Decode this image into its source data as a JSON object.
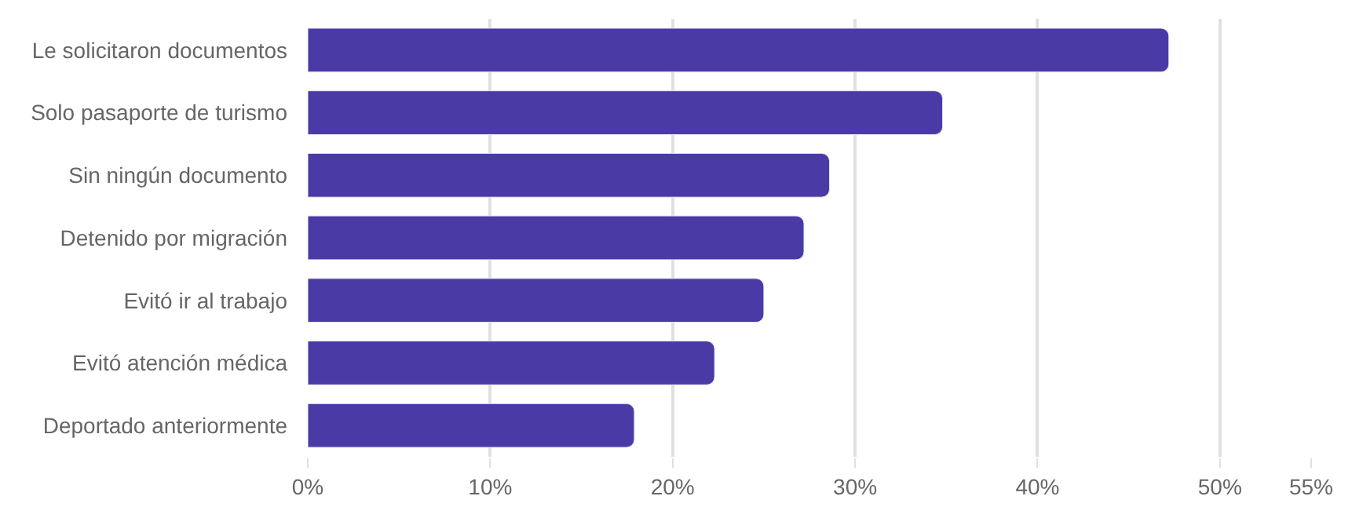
{
  "chart_data": {
    "type": "bar",
    "orientation": "horizontal",
    "categories": [
      "Le solicitaron documentos",
      "Solo pasaporte de turismo",
      "Sin ningún documento",
      "Detenido por migración",
      "Evitó ir al trabajo",
      "Evitó atención médica",
      "Deportado anteriormente"
    ],
    "values": [
      47.2,
      34.8,
      28.6,
      27.2,
      25.0,
      22.3,
      17.9
    ],
    "color": "#4a3aa6",
    "xlim": [
      0,
      55
    ],
    "xticks": [
      {
        "value": 0,
        "label": "0%"
      },
      {
        "value": 10,
        "label": "10%"
      },
      {
        "value": 20,
        "label": "20%"
      },
      {
        "value": 30,
        "label": "30%"
      },
      {
        "value": 40,
        "label": "40%"
      },
      {
        "value": 50,
        "label": "50%"
      },
      {
        "value": 55,
        "label": "55%"
      }
    ],
    "grid": "x"
  }
}
